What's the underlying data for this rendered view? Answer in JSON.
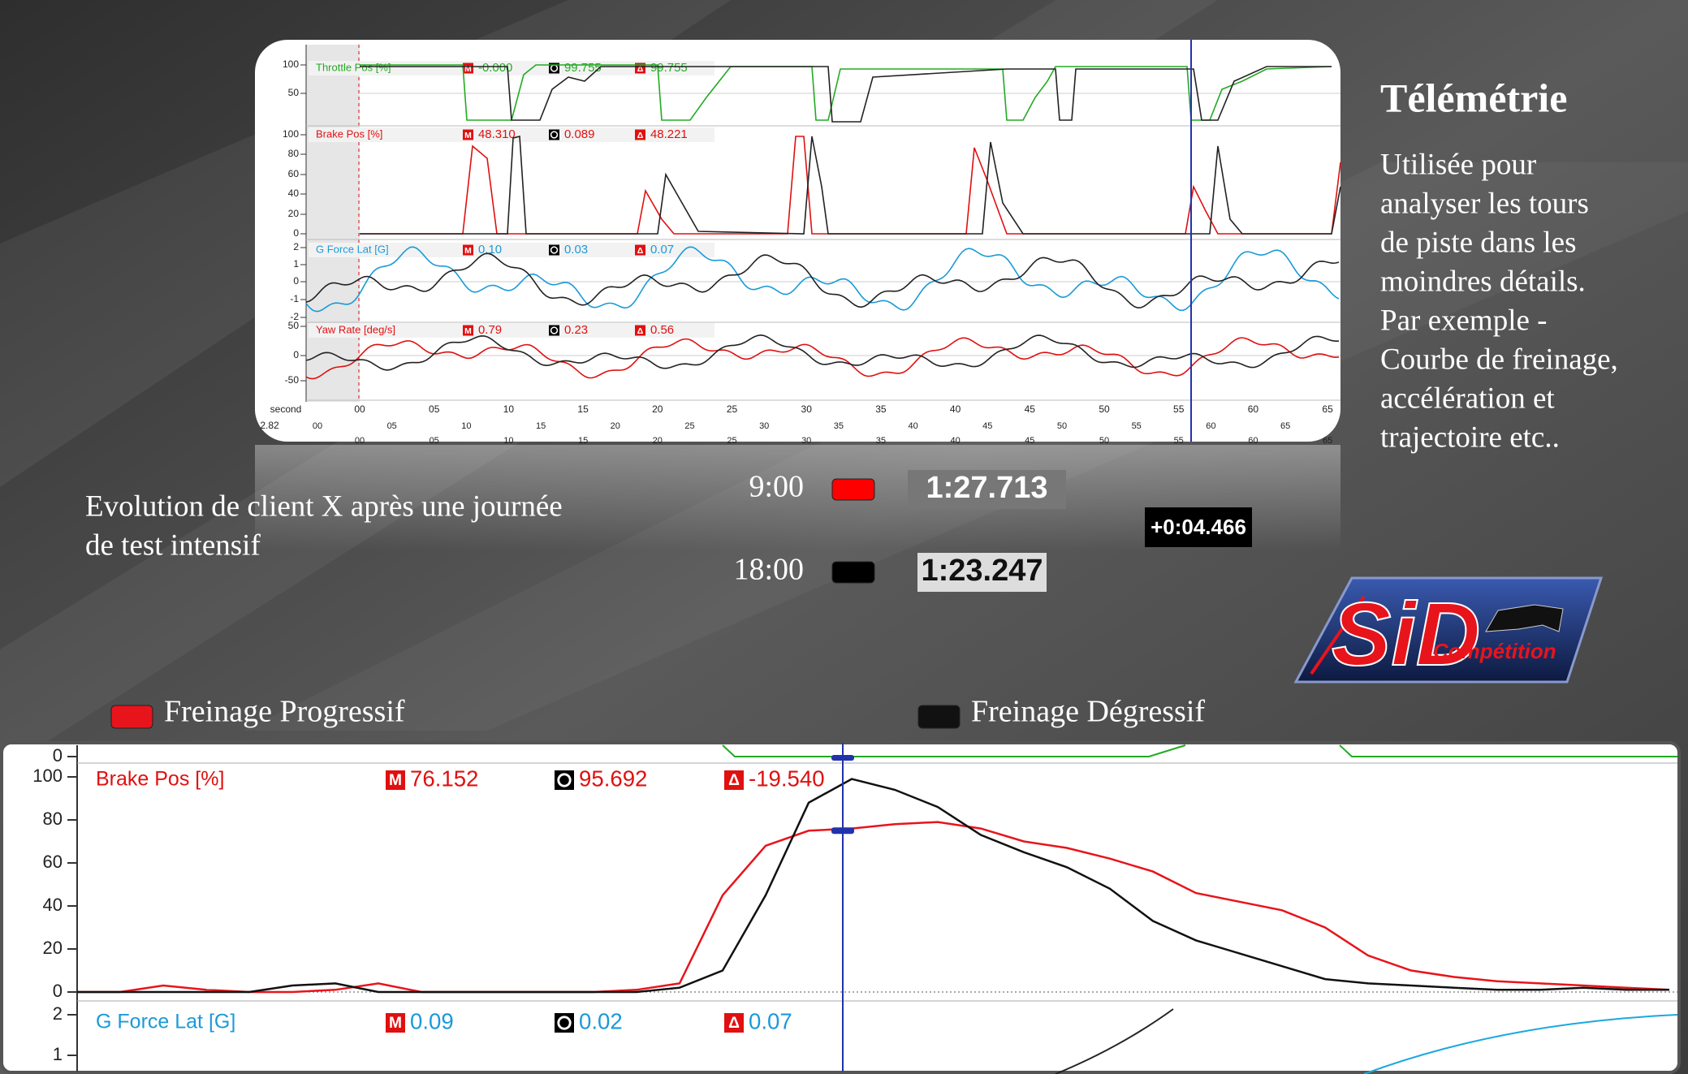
{
  "title": "Télémétrie",
  "description": [
    "Utilisée pour",
    "analyser  les tours",
    "de piste dans les",
    "moindres détails.",
    "Par exemple -",
    "Courbe de freinage,",
    "accélération et",
    "trajectoire etc.."
  ],
  "caption": [
    "Evolution de client X après  une journée",
    "de test intensif"
  ],
  "laps": [
    {
      "time": "9:00",
      "color": "#ff0000",
      "lap": "1:27.713"
    },
    {
      "time": "18:00",
      "color": "#000000",
      "lap": "1:23.247"
    }
  ],
  "gap": "+0:04.466",
  "logo": {
    "name": "SiD",
    "sub": "Compétition"
  },
  "icons": {
    "m": "M",
    "d": "Δ"
  },
  "overview": {
    "channels": [
      {
        "name": "Throttle Pos [%]",
        "color": "#22aa22",
        "readouts": [
          "-0.000",
          "99.755",
          "99.755"
        ],
        "ticks": [
          "100",
          "50"
        ]
      },
      {
        "name": "Brake Pos [%]",
        "color": "#e01010",
        "readouts": [
          "48.310",
          "0.089",
          "48.221"
        ],
        "ticks": [
          "100",
          "80",
          "60",
          "40",
          "20",
          "0"
        ]
      },
      {
        "name": "G Force Lat [G]",
        "color": "#1a9ad8",
        "readouts": [
          "0.10",
          "0.03",
          "0.07"
        ],
        "ticks": [
          "2",
          "1",
          "0",
          "-1",
          "-2"
        ]
      },
      {
        "name": "Yaw Rate [deg/s]",
        "color": "#e01010",
        "readouts": [
          "0.79",
          "0.23",
          "0.56"
        ],
        "ticks": [
          "50",
          "0",
          "-50"
        ]
      }
    ],
    "time_label": "second",
    "lap_row": "2.82",
    "time_ticks": [
      "00",
      "05",
      "10",
      "15",
      "20",
      "25",
      "30",
      "35",
      "40",
      "45",
      "50",
      "55",
      "60",
      "65"
    ]
  },
  "chart_data": {
    "type": "line",
    "title": "Brake Pos [%]",
    "readouts": [
      "76.152",
      "95.692",
      "-19.540"
    ],
    "ylim": [
      0,
      100
    ],
    "yticks": [
      0,
      20,
      40,
      60,
      80,
      100
    ],
    "series": [
      {
        "name": "Freinage Progressif",
        "color": "#e8141b",
        "values": [
          0,
          0,
          3,
          1,
          0,
          0,
          1,
          4,
          0,
          0,
          0,
          0,
          0,
          1,
          4,
          45,
          68,
          75,
          76,
          78,
          79,
          76,
          70,
          67,
          62,
          56,
          46,
          42,
          38,
          30,
          17,
          10,
          7,
          5,
          4,
          3,
          2,
          1
        ]
      },
      {
        "name": "Freinage Dégressif",
        "color": "#111111",
        "values": [
          0,
          0,
          0,
          0,
          0,
          3,
          4,
          0,
          0,
          0,
          0,
          0,
          0,
          0,
          2,
          10,
          45,
          88,
          99,
          94,
          86,
          73,
          65,
          58,
          48,
          33,
          24,
          18,
          12,
          6,
          4,
          3,
          2,
          1,
          1,
          2,
          1,
          1
        ]
      }
    ],
    "top_tick": "0",
    "g_panel": {
      "title": "G Force Lat [G]",
      "readouts": [
        "0.09",
        "0.02",
        "0.07"
      ],
      "ticks": [
        "2",
        "1"
      ]
    }
  }
}
